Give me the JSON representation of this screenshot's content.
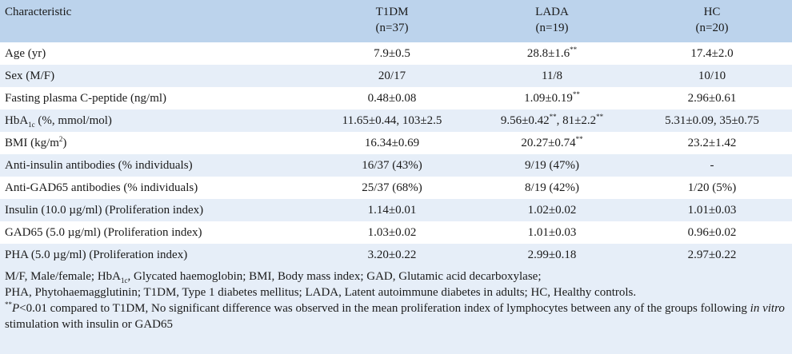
{
  "header": {
    "characteristic": "Characteristic",
    "groups": [
      {
        "name": "T1DM",
        "n": "(n=37)"
      },
      {
        "name": "LADA",
        "n": "(n=19)"
      },
      {
        "name": "HC",
        "n": "(n=20)"
      }
    ]
  },
  "rows": [
    {
      "label": "Age (yr)",
      "t1dm": "7.9±0.5",
      "lada": "28.8±1.6",
      "lada_sig": "**",
      "hc": "17.4±2.0"
    },
    {
      "label": "Sex (M/F)",
      "t1dm": "20/17",
      "lada": "11/8",
      "hc": "10/10"
    },
    {
      "label": "Fasting plasma C-peptide (ng/ml)",
      "t1dm": "0.48±0.08",
      "lada": "1.09±0.19",
      "lada_sig": "**",
      "hc": "2.96±0.61"
    },
    {
      "label_pre": "HbA",
      "label_sub": "1c",
      "label_post": " (%, mmol/mol)",
      "t1dm": "11.65±0.44, 103±2.5",
      "lada_a": "9.56±0.42",
      "lada_a_sig": "**",
      "lada_b": ", 81±2.2",
      "lada_b_sig": "**",
      "hc": "5.31±0.09, 35±0.75"
    },
    {
      "label_pre": "BMI (kg/m",
      "label_sup": "2",
      "label_post": ")",
      "t1dm": "16.34±0.69",
      "lada": "20.27±0.74",
      "lada_sig": "**",
      "hc": "23.2±1.42"
    },
    {
      "label": "Anti-insulin antibodies (% individuals)",
      "t1dm": "16/37 (43%)",
      "lada": "9/19 (47%)",
      "hc": "-"
    },
    {
      "label": "Anti-GAD65 antibodies (% individuals)",
      "t1dm": "25/37 (68%)",
      "lada": "8/19 (42%)",
      "hc": "1/20 (5%)"
    },
    {
      "label": "Insulin (10.0 µg/ml) (Proliferation index)",
      "t1dm": "1.14±0.01",
      "lada": "1.02±0.02",
      "hc": "1.01±0.03"
    },
    {
      "label": "GAD65 (5.0 µg/ml) (Proliferation index)",
      "t1dm": "1.03±0.02",
      "lada": "1.01±0.03",
      "hc": "0.96±0.02"
    },
    {
      "label": "PHA (5.0 µg/ml) (Proliferation index)",
      "t1dm": "3.20±0.22",
      "lada": "2.99±0.18",
      "hc": "2.97±0.22"
    }
  ],
  "footnote": {
    "line1_pre": "M/F, Male/female; HbA",
    "line1_sub": "1c",
    "line1_post": ", Glycated haemoglobin; BMI, Body mass index; GAD, Glutamic acid decarboxylase;",
    "line2": "PHA, Phytohaemagglutinin; T1DM, Type 1 diabetes mellitus; LADA, Latent autoimmune diabetes in adults; HC, Healthy controls.",
    "line3_sig": "**",
    "line3_p": "P",
    "line3_post": "<0.01 compared to T1DM, No significant difference was observed in the mean proliferation index of lymphocytes between any of the groups following ",
    "line3_italic": "in vitro",
    "line3_end": " stimulation with insulin or GAD65"
  }
}
